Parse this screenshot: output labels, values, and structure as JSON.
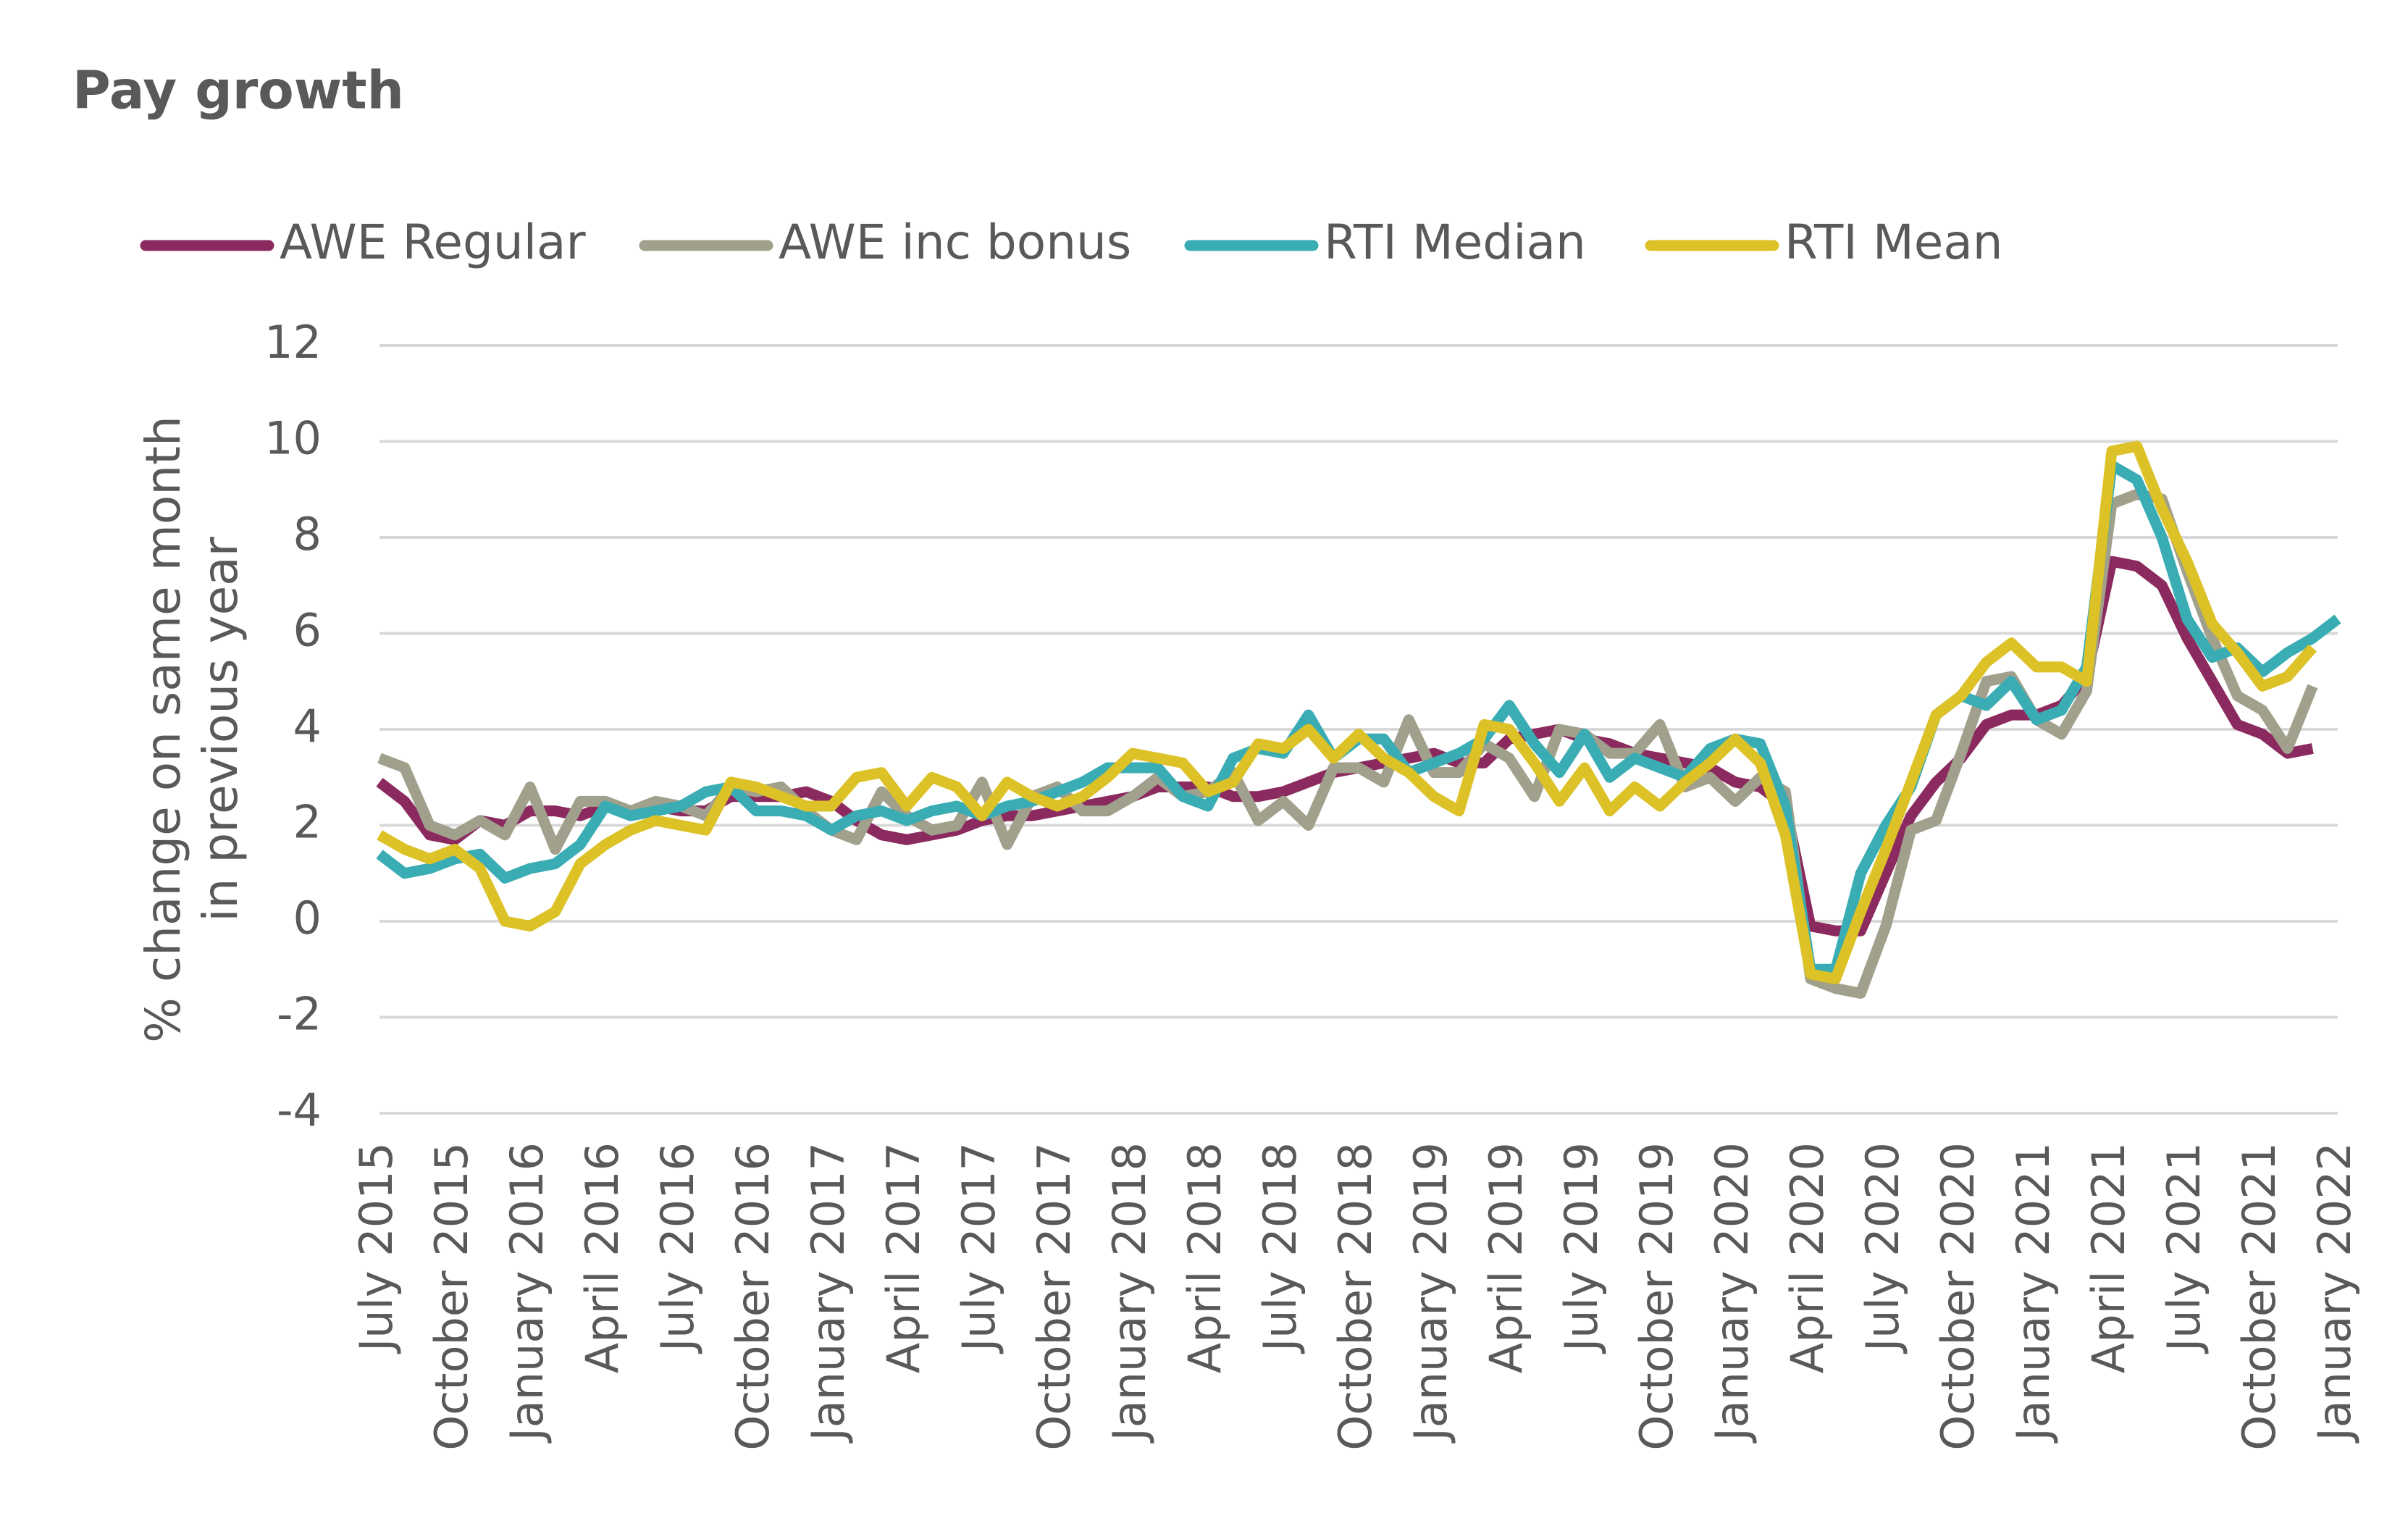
{
  "chart_data": {
    "type": "line",
    "title": "Pay growth",
    "y_label": "% change on same month in previous year",
    "categories": [
      "July 2015",
      null,
      null,
      "October 2015",
      null,
      null,
      "January 2016",
      null,
      null,
      "April 2016",
      null,
      null,
      "July 2016",
      null,
      null,
      "October 2016",
      null,
      null,
      "January 2017",
      null,
      null,
      "April 2017",
      null,
      null,
      "July 2017",
      null,
      null,
      "October 2017",
      null,
      null,
      "January 2018",
      null,
      null,
      "April 2018",
      null,
      null,
      "July 2018",
      null,
      null,
      "October 2018",
      null,
      null,
      "January 2019",
      null,
      null,
      "April 2019",
      null,
      null,
      "July 2019",
      null,
      null,
      "October 2019",
      null,
      null,
      "January 2020",
      null,
      null,
      "April 2020",
      null,
      null,
      "July 2020",
      null,
      null,
      "October 2020",
      null,
      null,
      "January 2021",
      null,
      null,
      "April 2021",
      null,
      null,
      "July 2021",
      null,
      null,
      "October 2021",
      null,
      null,
      "January 2022"
    ],
    "series": [
      {
        "name": "AWE Regular",
        "color": "#8b2a5e",
        "values": [
          2.9,
          2.5,
          1.8,
          1.7,
          2.1,
          2.0,
          2.3,
          2.3,
          2.2,
          2.4,
          2.3,
          2.4,
          2.3,
          2.3,
          2.6,
          2.6,
          2.6,
          2.7,
          2.5,
          2.1,
          1.8,
          1.7,
          1.8,
          1.9,
          2.1,
          2.2,
          2.2,
          2.3,
          2.4,
          2.5,
          2.6,
          2.8,
          2.8,
          2.8,
          2.6,
          2.6,
          2.7,
          2.9,
          3.1,
          3.2,
          3.3,
          3.4,
          3.5,
          3.3,
          3.3,
          3.8,
          3.9,
          4.0,
          3.8,
          3.7,
          3.5,
          3.4,
          3.3,
          3.2,
          2.9,
          2.8,
          2.4,
          -0.1,
          -0.2,
          -0.2,
          1.0,
          2.2,
          2.9,
          3.4,
          4.1,
          4.3,
          4.3,
          4.5,
          5.1,
          7.5,
          7.4,
          7.0,
          5.9,
          5.0,
          4.1,
          3.9,
          3.5,
          3.6,
          null
        ]
      },
      {
        "name": "AWE inc bonus",
        "color": "#a0a08c",
        "values": [
          3.4,
          3.2,
          2.0,
          1.8,
          2.1,
          1.8,
          2.8,
          1.5,
          2.5,
          2.5,
          2.3,
          2.5,
          2.4,
          2.2,
          2.8,
          2.7,
          2.8,
          2.3,
          1.9,
          1.7,
          2.7,
          2.2,
          1.9,
          2.0,
          2.9,
          1.6,
          2.6,
          2.8,
          2.3,
          2.3,
          2.6,
          3.0,
          2.6,
          2.7,
          3.1,
          2.1,
          2.5,
          2.0,
          3.2,
          3.2,
          2.9,
          4.2,
          3.1,
          3.1,
          3.7,
          3.4,
          2.6,
          4.0,
          3.9,
          3.5,
          3.5,
          4.1,
          2.8,
          3.0,
          2.5,
          3.0,
          2.7,
          -1.2,
          -1.4,
          -1.5,
          -0.1,
          1.9,
          2.1,
          3.5,
          5.0,
          5.1,
          4.2,
          3.9,
          4.8,
          8.7,
          8.9,
          8.8,
          7.3,
          5.9,
          4.7,
          4.4,
          3.6,
          4.9,
          null
        ]
      },
      {
        "name": "RTI Median",
        "color": "#3aacb4",
        "values": [
          1.4,
          1.0,
          1.1,
          1.3,
          1.4,
          0.9,
          1.1,
          1.2,
          1.6,
          2.4,
          2.2,
          2.3,
          2.4,
          2.7,
          2.8,
          2.3,
          2.3,
          2.2,
          1.9,
          2.2,
          2.3,
          2.1,
          2.3,
          2.4,
          2.2,
          2.4,
          2.5,
          2.7,
          2.9,
          3.2,
          3.2,
          3.2,
          2.6,
          2.4,
          3.4,
          3.6,
          3.5,
          4.3,
          3.4,
          3.8,
          3.8,
          3.1,
          3.3,
          3.5,
          3.8,
          4.5,
          3.7,
          3.1,
          3.9,
          3.0,
          3.4,
          3.2,
          3.0,
          3.6,
          3.8,
          3.7,
          2.4,
          -1.0,
          -1.0,
          1.0,
          2.0,
          2.8,
          4.3,
          4.7,
          4.5,
          5.0,
          4.2,
          4.4,
          5.3,
          9.5,
          9.2,
          8.0,
          6.3,
          5.5,
          5.7,
          5.2,
          5.6,
          5.9,
          6.3
        ]
      },
      {
        "name": "RTI Mean",
        "color": "#dcc226",
        "values": [
          1.8,
          1.5,
          1.3,
          1.5,
          1.1,
          0.0,
          -0.1,
          0.2,
          1.2,
          1.6,
          1.9,
          2.1,
          2.0,
          1.9,
          2.9,
          2.8,
          2.6,
          2.4,
          2.4,
          3.0,
          3.1,
          2.4,
          3.0,
          2.8,
          2.2,
          2.9,
          2.6,
          2.4,
          2.6,
          3.0,
          3.5,
          3.4,
          3.3,
          2.7,
          2.9,
          3.7,
          3.6,
          4.0,
          3.4,
          3.9,
          3.4,
          3.1,
          2.6,
          2.3,
          4.1,
          4.0,
          3.3,
          2.5,
          3.2,
          2.3,
          2.8,
          2.4,
          2.9,
          3.3,
          3.8,
          3.3,
          1.8,
          -1.1,
          -1.2,
          0.2,
          1.5,
          2.9,
          4.3,
          4.7,
          5.4,
          5.8,
          5.3,
          5.3,
          5.0,
          9.8,
          9.9,
          8.6,
          7.5,
          6.2,
          5.6,
          4.9,
          5.1,
          5.7,
          null
        ]
      }
    ],
    "ylim": [
      -4,
      12
    ],
    "yticks": [
      -4,
      -2,
      0,
      2,
      4,
      6,
      8,
      10,
      12
    ],
    "grid": true,
    "legend": "top"
  }
}
